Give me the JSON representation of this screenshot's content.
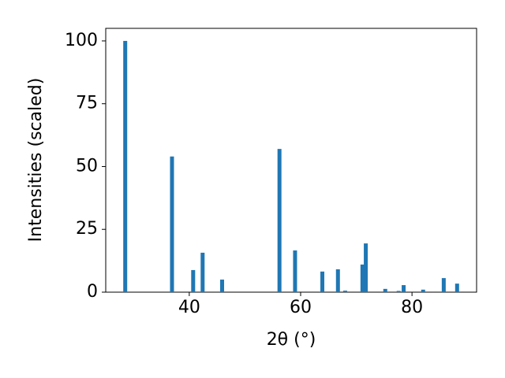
{
  "chart_data": {
    "type": "bar",
    "x_label": "2θ (°)",
    "y_label": "Intensities (scaled)",
    "x": [
      28.5,
      36.9,
      40.7,
      42.4,
      45.9,
      56.2,
      59.0,
      63.9,
      66.7,
      68.0,
      71.1,
      71.7,
      75.2,
      77.6,
      78.5,
      82.0,
      85.7,
      88.1
    ],
    "values": [
      100,
      54,
      8.8,
      15.7,
      5.0,
      57,
      16.6,
      8.2,
      9.1,
      0.6,
      11,
      19.4,
      1.3,
      0.5,
      2.8,
      1.0,
      5.6,
      3.4
    ],
    "color": "#1f77b4",
    "xlim": [
      25,
      91.6
    ],
    "xticks": [
      40,
      60,
      80
    ],
    "ylim": [
      0,
      105
    ],
    "yticks": [
      0,
      25,
      50,
      75,
      100
    ],
    "grid": false
  }
}
